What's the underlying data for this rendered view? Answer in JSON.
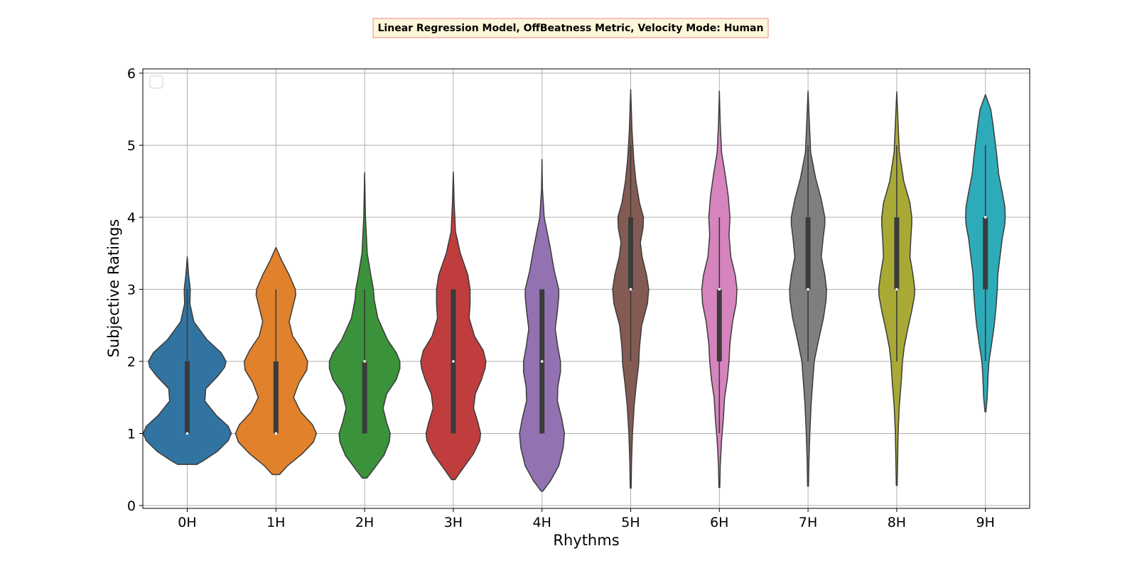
{
  "chart_data": {
    "type": "violin",
    "title": "Linear Regression Model, OffBeatness Metric, Velocity Mode: Human",
    "xlabel": "Rhythms",
    "ylabel": "Subjective Ratings",
    "ylim": [
      -0.07,
      6.05
    ],
    "yticks": [
      0,
      1,
      2,
      3,
      4,
      5,
      6
    ],
    "grid": true,
    "legend": {
      "placement": "upper-left",
      "entries": []
    },
    "title_box": {
      "fill": "#fdf6d9",
      "border": "#e88a8a"
    },
    "categories": [
      "0H",
      "1H",
      "2H",
      "3H",
      "4H",
      "5H",
      "6H",
      "7H",
      "8H",
      "9H"
    ],
    "colors": [
      "#3274a1",
      "#e1812c",
      "#3a923a",
      "#c03d3e",
      "#9372b2",
      "#845b53",
      "#d684bd",
      "#7f7f7f",
      "#a9aa35",
      "#2eabb8"
    ],
    "series": [
      {
        "category": "0H",
        "q1": 1,
        "median": 1,
        "q3": 2,
        "whisker_low": 1,
        "whisker_high": 3,
        "min": 0.57,
        "max": 3.45,
        "density": [
          [
            0.57,
            0.22
          ],
          [
            0.62,
            0.36
          ],
          [
            0.75,
            0.68
          ],
          [
            0.9,
            0.93
          ],
          [
            1.0,
            1.0
          ],
          [
            1.1,
            0.93
          ],
          [
            1.25,
            0.66
          ],
          [
            1.45,
            0.4
          ],
          [
            1.62,
            0.42
          ],
          [
            1.8,
            0.7
          ],
          [
            1.92,
            0.85
          ],
          [
            2.0,
            0.88
          ],
          [
            2.12,
            0.77
          ],
          [
            2.3,
            0.45
          ],
          [
            2.55,
            0.15
          ],
          [
            2.8,
            0.06
          ],
          [
            3.0,
            0.07
          ],
          [
            3.2,
            0.03
          ],
          [
            3.45,
            0.0
          ]
        ]
      },
      {
        "category": "1H",
        "q1": 1,
        "median": 1,
        "q3": 2,
        "whisker_low": 1,
        "whisker_high": 3,
        "min": 0.43,
        "max": 3.58,
        "density": [
          [
            0.43,
            0.08
          ],
          [
            0.55,
            0.26
          ],
          [
            0.72,
            0.6
          ],
          [
            0.88,
            0.85
          ],
          [
            1.0,
            0.92
          ],
          [
            1.12,
            0.83
          ],
          [
            1.3,
            0.56
          ],
          [
            1.5,
            0.4
          ],
          [
            1.7,
            0.52
          ],
          [
            1.88,
            0.7
          ],
          [
            2.0,
            0.72
          ],
          [
            2.15,
            0.6
          ],
          [
            2.35,
            0.38
          ],
          [
            2.55,
            0.3
          ],
          [
            2.75,
            0.38
          ],
          [
            2.92,
            0.45
          ],
          [
            3.0,
            0.44
          ],
          [
            3.2,
            0.3
          ],
          [
            3.4,
            0.13
          ],
          [
            3.58,
            0.0
          ]
        ]
      },
      {
        "category": "2H",
        "q1": 1,
        "median": 2,
        "q3": 2,
        "whisker_low": 1,
        "whisker_high": 3,
        "min": 0.38,
        "max": 4.62,
        "density": [
          [
            0.38,
            0.05
          ],
          [
            0.5,
            0.2
          ],
          [
            0.7,
            0.44
          ],
          [
            0.88,
            0.56
          ],
          [
            1.0,
            0.58
          ],
          [
            1.15,
            0.5
          ],
          [
            1.35,
            0.42
          ],
          [
            1.55,
            0.5
          ],
          [
            1.75,
            0.72
          ],
          [
            1.9,
            0.8
          ],
          [
            2.0,
            0.8
          ],
          [
            2.12,
            0.72
          ],
          [
            2.3,
            0.52
          ],
          [
            2.6,
            0.3
          ],
          [
            2.85,
            0.22
          ],
          [
            3.0,
            0.2
          ],
          [
            3.2,
            0.14
          ],
          [
            3.5,
            0.06
          ],
          [
            4.0,
            0.02
          ],
          [
            4.62,
            0.0
          ]
        ]
      },
      {
        "category": "3H",
        "q1": 1,
        "median": 2,
        "q3": 3,
        "whisker_low": 1,
        "whisker_high": 3,
        "min": 0.36,
        "max": 4.63,
        "density": [
          [
            0.36,
            0.04
          ],
          [
            0.5,
            0.2
          ],
          [
            0.72,
            0.46
          ],
          [
            0.9,
            0.6
          ],
          [
            1.0,
            0.62
          ],
          [
            1.15,
            0.56
          ],
          [
            1.35,
            0.46
          ],
          [
            1.55,
            0.5
          ],
          [
            1.75,
            0.64
          ],
          [
            1.9,
            0.72
          ],
          [
            2.0,
            0.74
          ],
          [
            2.15,
            0.68
          ],
          [
            2.35,
            0.48
          ],
          [
            2.6,
            0.36
          ],
          [
            2.8,
            0.38
          ],
          [
            3.0,
            0.38
          ],
          [
            3.2,
            0.33
          ],
          [
            3.5,
            0.16
          ],
          [
            3.8,
            0.05
          ],
          [
            4.2,
            0.02
          ],
          [
            4.63,
            0.0
          ]
        ]
      },
      {
        "category": "4H",
        "q1": 1,
        "median": 2,
        "q3": 3,
        "whisker_low": 1,
        "whisker_high": 3,
        "min": 0.2,
        "max": 4.8,
        "density": [
          [
            0.2,
            0.02
          ],
          [
            0.35,
            0.2
          ],
          [
            0.55,
            0.38
          ],
          [
            0.8,
            0.48
          ],
          [
            1.0,
            0.51
          ],
          [
            1.2,
            0.45
          ],
          [
            1.45,
            0.35
          ],
          [
            1.65,
            0.36
          ],
          [
            1.85,
            0.42
          ],
          [
            2.0,
            0.42
          ],
          [
            2.2,
            0.36
          ],
          [
            2.45,
            0.3
          ],
          [
            2.7,
            0.35
          ],
          [
            2.9,
            0.38
          ],
          [
            3.0,
            0.38
          ],
          [
            3.25,
            0.28
          ],
          [
            3.6,
            0.18
          ],
          [
            4.0,
            0.05
          ],
          [
            4.4,
            0.01
          ],
          [
            4.8,
            0.0
          ]
        ]
      },
      {
        "category": "5H",
        "q1": 3,
        "median": 3,
        "q3": 4,
        "whisker_low": 2,
        "whisker_high": 5,
        "min": 0.24,
        "max": 5.77,
        "density": [
          [
            0.24,
            0.01
          ],
          [
            0.6,
            0.02
          ],
          [
            1.0,
            0.04
          ],
          [
            1.4,
            0.08
          ],
          [
            1.7,
            0.13
          ],
          [
            1.95,
            0.18
          ],
          [
            2.2,
            0.2
          ],
          [
            2.5,
            0.25
          ],
          [
            2.8,
            0.38
          ],
          [
            3.0,
            0.41
          ],
          [
            3.2,
            0.36
          ],
          [
            3.45,
            0.26
          ],
          [
            3.65,
            0.22
          ],
          [
            3.85,
            0.28
          ],
          [
            4.0,
            0.29
          ],
          [
            4.2,
            0.2
          ],
          [
            4.5,
            0.12
          ],
          [
            4.8,
            0.07
          ],
          [
            5.2,
            0.03
          ],
          [
            5.77,
            0.0
          ]
        ]
      },
      {
        "category": "6H",
        "q1": 2,
        "median": 3,
        "q3": 3,
        "whisker_low": 1,
        "whisker_high": 4,
        "min": 0.25,
        "max": 5.75,
        "density": [
          [
            0.25,
            0.01
          ],
          [
            0.55,
            0.02
          ],
          [
            0.9,
            0.05
          ],
          [
            1.2,
            0.09
          ],
          [
            1.5,
            0.12
          ],
          [
            1.75,
            0.18
          ],
          [
            2.0,
            0.22
          ],
          [
            2.25,
            0.24
          ],
          [
            2.55,
            0.3
          ],
          [
            2.8,
            0.38
          ],
          [
            3.0,
            0.4
          ],
          [
            3.2,
            0.36
          ],
          [
            3.45,
            0.26
          ],
          [
            3.75,
            0.22
          ],
          [
            4.0,
            0.24
          ],
          [
            4.3,
            0.2
          ],
          [
            4.6,
            0.13
          ],
          [
            4.9,
            0.05
          ],
          [
            5.3,
            0.02
          ],
          [
            5.75,
            0.0
          ]
        ]
      },
      {
        "category": "7H",
        "q1": 3,
        "median": 3,
        "q3": 4,
        "whisker_low": 2,
        "whisker_high": 5,
        "min": 0.27,
        "max": 5.75,
        "density": [
          [
            0.27,
            0.01
          ],
          [
            0.6,
            0.02
          ],
          [
            1.0,
            0.04
          ],
          [
            1.4,
            0.07
          ],
          [
            1.75,
            0.11
          ],
          [
            2.0,
            0.14
          ],
          [
            2.3,
            0.24
          ],
          [
            2.6,
            0.35
          ],
          [
            2.85,
            0.41
          ],
          [
            3.0,
            0.42
          ],
          [
            3.2,
            0.38
          ],
          [
            3.45,
            0.3
          ],
          [
            3.7,
            0.34
          ],
          [
            3.9,
            0.38
          ],
          [
            4.0,
            0.38
          ],
          [
            4.25,
            0.3
          ],
          [
            4.55,
            0.17
          ],
          [
            4.9,
            0.06
          ],
          [
            5.3,
            0.03
          ],
          [
            5.75,
            0.0
          ]
        ]
      },
      {
        "category": "8H",
        "q1": 3,
        "median": 3,
        "q3": 4,
        "whisker_low": 2,
        "whisker_high": 5,
        "min": 0.28,
        "max": 5.74,
        "density": [
          [
            0.28,
            0.01
          ],
          [
            0.6,
            0.02
          ],
          [
            1.0,
            0.03
          ],
          [
            1.4,
            0.06
          ],
          [
            1.7,
            0.1
          ],
          [
            2.0,
            0.13
          ],
          [
            2.2,
            0.17
          ],
          [
            2.45,
            0.25
          ],
          [
            2.7,
            0.34
          ],
          [
            2.9,
            0.4
          ],
          [
            3.0,
            0.41
          ],
          [
            3.2,
            0.37
          ],
          [
            3.45,
            0.3
          ],
          [
            3.7,
            0.32
          ],
          [
            3.9,
            0.34
          ],
          [
            4.0,
            0.34
          ],
          [
            4.2,
            0.3
          ],
          [
            4.5,
            0.16
          ],
          [
            4.9,
            0.06
          ],
          [
            5.3,
            0.03
          ],
          [
            5.74,
            0.0
          ]
        ]
      },
      {
        "category": "9H",
        "q1": 3,
        "median": 4,
        "q3": 4,
        "whisker_low": 2,
        "whisker_high": 5,
        "min": 1.3,
        "max": 5.7,
        "density": [
          [
            1.3,
            0.01
          ],
          [
            1.5,
            0.04
          ],
          [
            1.8,
            0.06
          ],
          [
            2.0,
            0.08
          ],
          [
            2.2,
            0.13
          ],
          [
            2.5,
            0.2
          ],
          [
            2.75,
            0.24
          ],
          [
            3.0,
            0.27
          ],
          [
            3.2,
            0.28
          ],
          [
            3.45,
            0.33
          ],
          [
            3.7,
            0.38
          ],
          [
            3.9,
            0.44
          ],
          [
            4.0,
            0.45
          ],
          [
            4.15,
            0.44
          ],
          [
            4.35,
            0.38
          ],
          [
            4.6,
            0.3
          ],
          [
            4.85,
            0.26
          ],
          [
            5.05,
            0.22
          ],
          [
            5.3,
            0.17
          ],
          [
            5.5,
            0.12
          ],
          [
            5.7,
            0.0
          ]
        ]
      }
    ]
  }
}
